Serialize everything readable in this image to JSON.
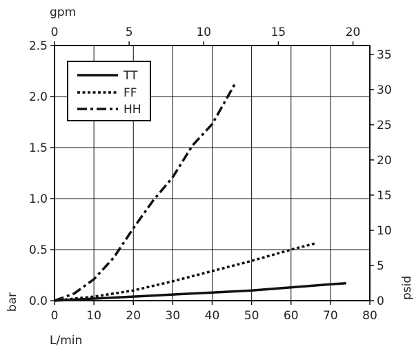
{
  "chart_data": {
    "type": "line",
    "x": [
      0,
      5,
      10,
      15,
      20,
      25,
      30,
      35,
      40,
      45,
      50,
      55,
      60,
      65,
      70,
      74
    ],
    "xlabel": "L/min",
    "ylabel": "bar",
    "xlim": [
      0,
      80
    ],
    "ylim": [
      0,
      2.5
    ],
    "xticks": [
      0,
      10,
      20,
      30,
      40,
      50,
      60,
      70,
      80
    ],
    "yticks": [
      "0.0",
      "0.5",
      "1.0",
      "1.5",
      "2.0",
      "2.5"
    ],
    "secondary_x": {
      "label": "gpm",
      "ticks": [
        0,
        5,
        10,
        15,
        20
      ],
      "lim": [
        0,
        21.13
      ]
    },
    "secondary_y": {
      "label": "psid",
      "ticks": [
        0,
        5,
        10,
        15,
        20,
        25,
        30,
        35
      ],
      "lim": [
        0,
        36.26
      ]
    },
    "grid": true,
    "legend_position": "top-left",
    "series": [
      {
        "name": "TT",
        "style": "solid",
        "x": [
          0,
          10,
          20,
          30,
          40,
          50,
          60,
          70,
          74
        ],
        "values": [
          0,
          0.02,
          0.04,
          0.06,
          0.08,
          0.1,
          0.13,
          0.16,
          0.17
        ]
      },
      {
        "name": "FF",
        "style": "dotted",
        "x": [
          0,
          10,
          20,
          30,
          40,
          50,
          60,
          66
        ],
        "values": [
          0,
          0.04,
          0.1,
          0.19,
          0.29,
          0.39,
          0.5,
          0.56
        ]
      },
      {
        "name": "HH",
        "style": "dash-dot",
        "x": [
          0,
          5,
          10,
          15,
          20,
          25,
          30,
          35,
          40,
          46
        ],
        "values": [
          0,
          0.07,
          0.21,
          0.42,
          0.71,
          0.98,
          1.21,
          1.52,
          1.73,
          2.14
        ]
      }
    ]
  }
}
